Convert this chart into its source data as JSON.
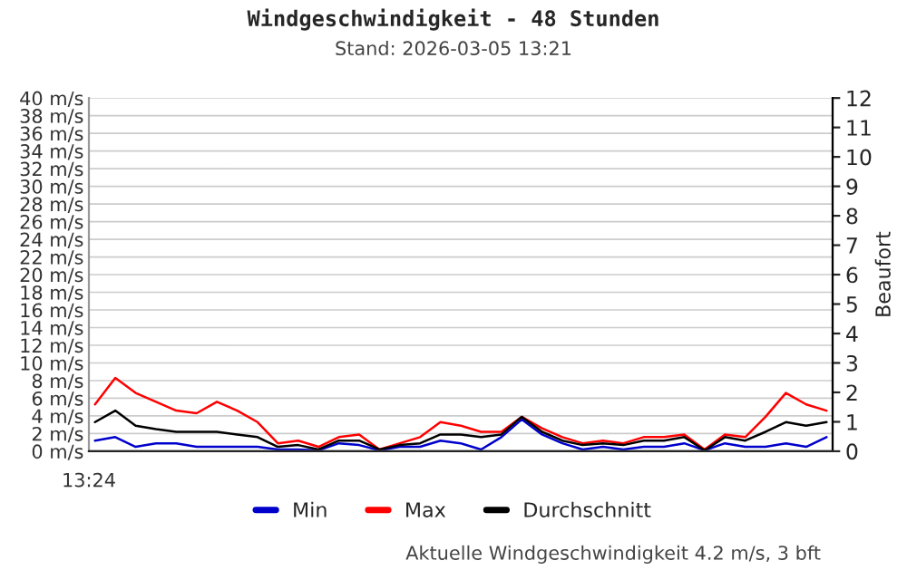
{
  "chart_data": {
    "type": "line",
    "title": "Windgeschwindigkeit - 48 Stunden",
    "subtitle": "Stand: 2026-03-05 13:21",
    "y2label": "Beaufort",
    "annotations": [
      "13:24",
      "Aktuelle Windgeschwindigkeit 4.2 m/s, 3 bft"
    ],
    "categories": [
      null,
      null,
      null,
      null,
      null,
      null,
      null,
      null,
      null,
      null,
      null,
      null,
      null,
      null,
      null,
      null,
      null,
      null,
      null,
      null,
      null,
      null,
      null,
      null,
      null,
      null,
      null,
      null,
      null,
      null,
      null,
      null,
      null,
      null,
      null,
      null,
      null
    ],
    "series": [
      {
        "name": "Min",
        "color": "#0000cc",
        "values": [
          1.2,
          1.6,
          0.5,
          0.9,
          0.9,
          0.5,
          0.5,
          0.5,
          0.5,
          0.2,
          0.2,
          0.1,
          0.9,
          0.7,
          0.1,
          0.5,
          0.5,
          1.2,
          0.9,
          0.2,
          1.6,
          3.6,
          1.9,
          0.9,
          0.2,
          0.5,
          0.2,
          0.5,
          0.5,
          0.9,
          0.1,
          0.9,
          0.5,
          0.5,
          0.9,
          0.5,
          1.6
        ]
      },
      {
        "name": "Max",
        "color": "#ff0000",
        "values": [
          5.3,
          8.3,
          6.6,
          5.6,
          4.6,
          4.3,
          5.6,
          4.6,
          3.3,
          0.9,
          1.2,
          0.5,
          1.6,
          1.9,
          0.2,
          0.9,
          1.6,
          3.3,
          2.9,
          2.2,
          2.2,
          3.9,
          2.6,
          1.6,
          0.9,
          1.2,
          0.9,
          1.6,
          1.6,
          1.9,
          0.2,
          1.9,
          1.6,
          3.9,
          6.6,
          5.3,
          4.6
        ]
      },
      {
        "name": "Durchschnitt",
        "color": "#000000",
        "values": [
          3.3,
          4.6,
          2.9,
          2.5,
          2.2,
          2.2,
          2.2,
          1.9,
          1.6,
          0.5,
          0.7,
          0.2,
          1.2,
          1.2,
          0.2,
          0.7,
          0.9,
          1.9,
          1.9,
          1.6,
          1.9,
          3.9,
          2.2,
          1.2,
          0.7,
          0.9,
          0.7,
          1.2,
          1.2,
          1.6,
          0.1,
          1.6,
          1.2,
          2.2,
          3.3,
          2.9,
          3.3
        ]
      }
    ],
    "ylim": [
      0,
      40
    ],
    "yticks": [
      {
        "value": 0,
        "label": "0 m/s"
      },
      {
        "value": 2,
        "label": "2 m/s"
      },
      {
        "value": 4,
        "label": "4 m/s"
      },
      {
        "value": 6,
        "label": "6 m/s"
      },
      {
        "value": 8,
        "label": "8 m/s"
      },
      {
        "value": 10,
        "label": "10 m/s"
      },
      {
        "value": 12,
        "label": "12 m/s"
      },
      {
        "value": 14,
        "label": "14 m/s"
      },
      {
        "value": 16,
        "label": "16 m/s"
      },
      {
        "value": 18,
        "label": "18 m/s"
      },
      {
        "value": 20,
        "label": "20 m/s"
      },
      {
        "value": 22,
        "label": "22 m/s"
      },
      {
        "value": 24,
        "label": "24 m/s"
      },
      {
        "value": 26,
        "label": "26 m/s"
      },
      {
        "value": 28,
        "label": "28 m/s"
      },
      {
        "value": 30,
        "label": "30 m/s"
      },
      {
        "value": 32,
        "label": "32 m/s"
      },
      {
        "value": 34,
        "label": "34 m/s"
      },
      {
        "value": 36,
        "label": "36 m/s"
      },
      {
        "value": 38,
        "label": "38 m/s"
      },
      {
        "value": 40,
        "label": "40 m/s"
      }
    ],
    "y2lim": [
      0,
      12
    ],
    "y2ticks": [
      0,
      1,
      2,
      3,
      4,
      5,
      6,
      7,
      8,
      9,
      10,
      11,
      12
    ],
    "grid": "y",
    "legend": "bottom",
    "marker": "none",
    "line_style": "solid"
  }
}
